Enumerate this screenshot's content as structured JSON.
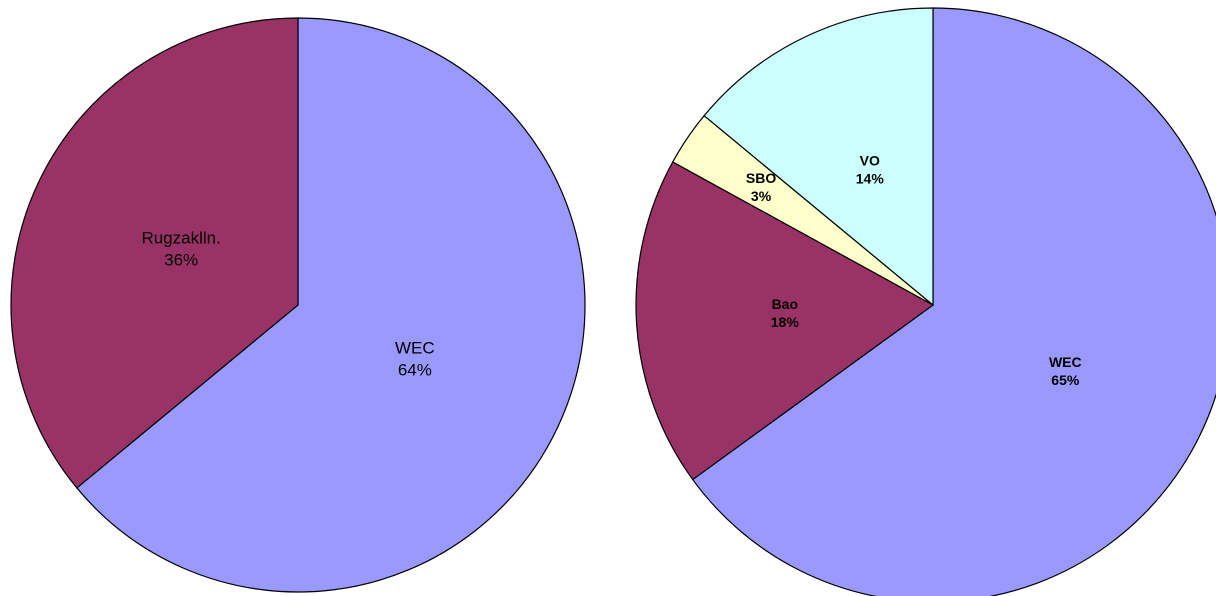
{
  "chart_data": [
    {
      "type": "pie",
      "categories": [
        "WEC",
        "Rugzaklln."
      ],
      "values": [
        64,
        36
      ],
      "value_labels": [
        "64%",
        "36%"
      ],
      "colors": [
        "#9999ff",
        "#993366"
      ]
    },
    {
      "type": "pie",
      "categories": [
        "WEC",
        "Bao",
        "SBO",
        "VO"
      ],
      "values": [
        65,
        18,
        3,
        14
      ],
      "value_labels": [
        "65%",
        "18%",
        "3%",
        "14%"
      ],
      "colors": [
        "#9999ff",
        "#993366",
        "#ffffcc",
        "#ccffff"
      ]
    }
  ]
}
